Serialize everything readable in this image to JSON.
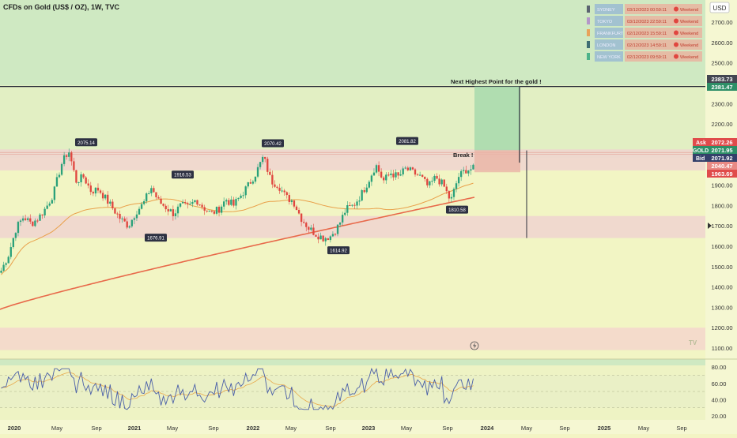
{
  "header": {
    "title": "CFDs on Gold (US$ / OZ), 1W, TVC",
    "currency": "USD"
  },
  "sessions": [
    {
      "name": "SYDNEY",
      "time": "03/12/2023 00:59:11",
      "status": "Weekend",
      "color": "#5b6470"
    },
    {
      "name": "TOKYO",
      "time": "03/12/2023 22:59:11",
      "status": "Weekend",
      "color": "#b497c9"
    },
    {
      "name": "FRANKFURT",
      "time": "02/12/2023 15:59:11",
      "status": "Weekend",
      "color": "#e8a35b"
    },
    {
      "name": "LONDON",
      "time": "02/12/2023 14:59:11",
      "status": "Weekend",
      "color": "#3f6d73"
    },
    {
      "name": "NEW YORK",
      "time": "02/12/2023 09:59:11",
      "status": "Weekend",
      "color": "#4db38a"
    }
  ],
  "annotations": {
    "next_high": "Next Highest Point for the gold !",
    "break": "Break !",
    "tv_logo": "TV"
  },
  "price_labels": {
    "ask_label": "Ask",
    "ask": "2072.26",
    "gold_label": "GOLD",
    "gold": "2071.95",
    "bid_label": "Bid",
    "bid": "2071.92",
    "p1": "2040.47",
    "p2": "1963.69",
    "target1": "2383.73",
    "target2": "2381.47"
  },
  "chart_data": {
    "type": "candlestick",
    "title": "CFDs on Gold (US$ / OZ), 1W, TVC",
    "ylim": [
      1060,
      2810
    ],
    "y_ticks": [
      "2700.00",
      "2600.00",
      "2500.00",
      "2400.00",
      "2300.00",
      "2200.00",
      "2100.00",
      "2000.00",
      "1900.00",
      "1800.00",
      "1700.00",
      "1600.00",
      "1500.00",
      "1400.00",
      "1300.00",
      "1200.00",
      "1100.00"
    ],
    "x_ticks": [
      "2020",
      "May",
      "Sep",
      "2021",
      "May",
      "Sep",
      "2022",
      "May",
      "Sep",
      "2023",
      "May",
      "Sep",
      "2024",
      "May",
      "Sep",
      "2025",
      "May",
      "Sep"
    ],
    "swing_labels": [
      {
        "date": "2020-08",
        "value": "2075.14"
      },
      {
        "date": "2021-03",
        "value": "1676.91"
      },
      {
        "date": "2021-06",
        "value": "1916.53"
      },
      {
        "date": "2022-03",
        "value": "2070.42"
      },
      {
        "date": "2022-09",
        "value": "1614.92"
      },
      {
        "date": "2023-05",
        "value": "2081.82"
      },
      {
        "date": "2023-10",
        "value": "1810.58"
      }
    ],
    "zones": [
      {
        "low": 1972,
        "high": 2075
      },
      {
        "low": 1640,
        "high": 1748
      },
      {
        "low": 1090,
        "high": 1200
      }
    ],
    "target_level": 2383.73,
    "price_path": [
      1480,
      1560,
      1690,
      1745,
      1710,
      1740,
      1790,
      1860,
      2000,
      2070,
      1920,
      1940,
      1870,
      1880,
      1830,
      1780,
      1730,
      1700,
      1770,
      1810,
      1890,
      1820,
      1790,
      1760,
      1800,
      1790,
      1830,
      1790,
      1760,
      1780,
      1830,
      1800,
      1850,
      1900,
      1960,
      2040,
      1920,
      1900,
      1840,
      1820,
      1740,
      1690,
      1660,
      1640,
      1650,
      1700,
      1780,
      1800,
      1850,
      1920,
      2000,
      1920,
      1960,
      1940,
      1980,
      1960,
      1940,
      1890,
      1940,
      1900,
      1820,
      1940,
      1975,
      1980
    ],
    "rsi": {
      "ylim": [
        20,
        85
      ],
      "y_ticks": [
        "80.00",
        "60.00",
        "40.00",
        "20.00"
      ]
    }
  }
}
